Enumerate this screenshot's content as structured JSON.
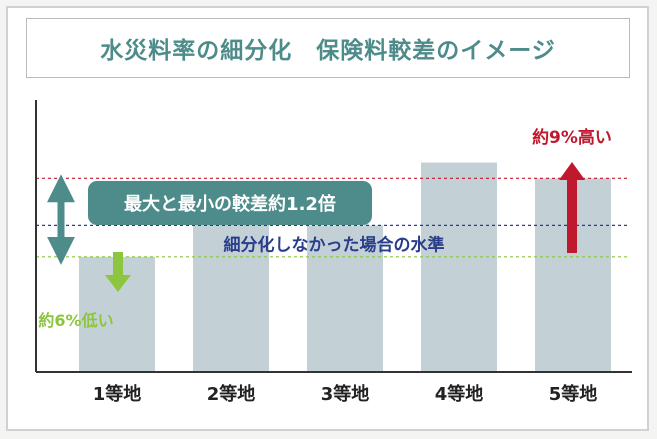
{
  "title": "水災料率の細分化　保険料較差のイメージ",
  "colors": {
    "bar": "#c3d1d7",
    "teal": "#4e8c8b",
    "red": "#c0192d",
    "navy": "#2a3d8a",
    "green": "#8cc63f",
    "axis": "#333333"
  },
  "chart_data": {
    "type": "bar",
    "categories": [
      "1等地",
      "2等地",
      "3等地",
      "4等地",
      "5等地"
    ],
    "values": [
      0.94,
      1.02,
      1.0,
      1.12,
      1.09
    ],
    "ylim": [
      0.72,
      1.23
    ],
    "reference_lines": [
      {
        "label": "細分化しなかった場合の水準",
        "value": 1.0,
        "color": "#2a3d8a"
      },
      {
        "label": "",
        "value": 1.09,
        "color": "#c0192d"
      },
      {
        "label": "",
        "value": 0.94,
        "color": "#8cc63f"
      }
    ],
    "annotations": {
      "spread": "最大と最小の較差約1.2倍",
      "high": "約9%高い",
      "low": "約6%低い"
    }
  }
}
